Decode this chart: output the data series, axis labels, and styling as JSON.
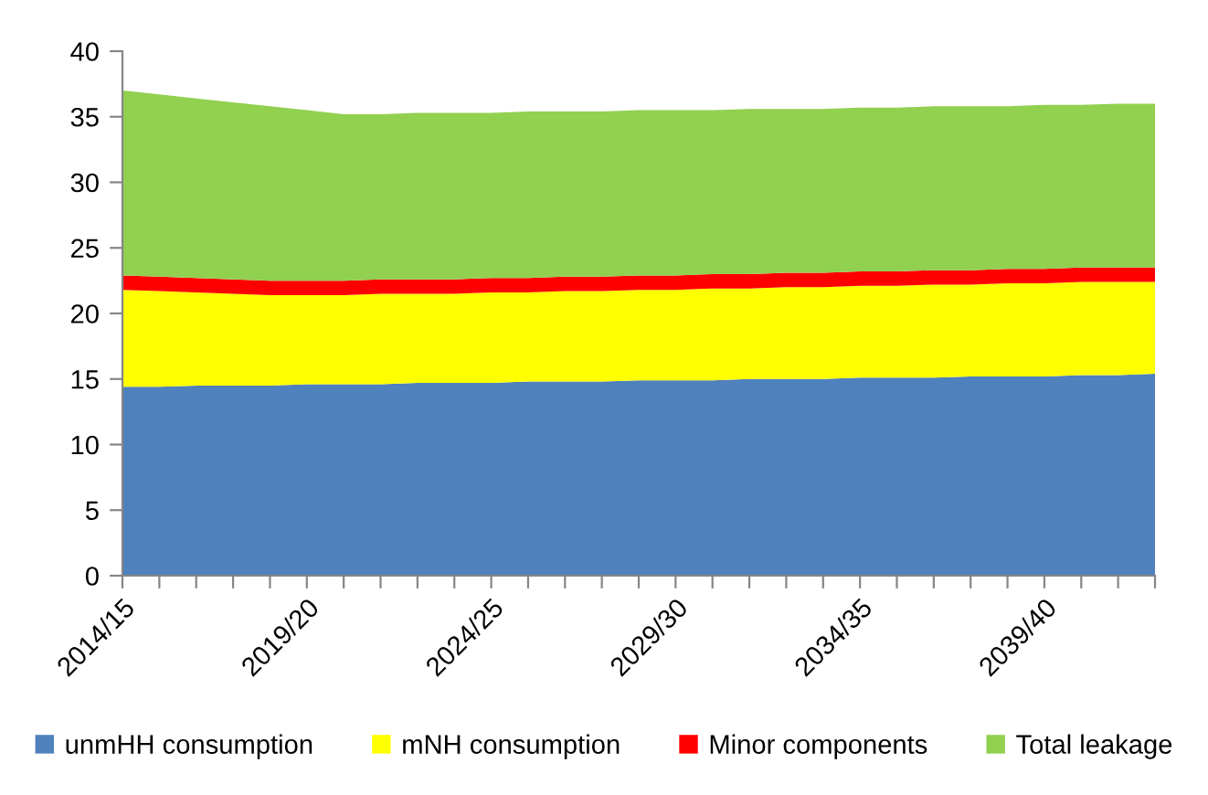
{
  "chart_data": {
    "type": "area",
    "stacked": true,
    "legend": "bottom",
    "categories": [
      "2014/15",
      null,
      null,
      null,
      null,
      "2019/20",
      null,
      null,
      null,
      null,
      "2024/25",
      null,
      null,
      null,
      null,
      "2029/30",
      null,
      null,
      null,
      null,
      "2034/35",
      null,
      null,
      null,
      null,
      "2039/40",
      null,
      null,
      null
    ],
    "ylim": [
      0,
      40
    ],
    "yticks": [
      0,
      5,
      10,
      15,
      20,
      25,
      30,
      35,
      40
    ],
    "series": [
      {
        "name": "unmHH consumption",
        "color": "#4f81bd",
        "values": [
          14.4,
          14.4,
          14.5,
          14.5,
          14.5,
          14.6,
          14.6,
          14.6,
          14.7,
          14.7,
          14.7,
          14.8,
          14.8,
          14.8,
          14.9,
          14.9,
          14.9,
          15.0,
          15.0,
          15.0,
          15.1,
          15.1,
          15.1,
          15.2,
          15.2,
          15.2,
          15.3,
          15.3,
          15.4
        ]
      },
      {
        "name": "mNH consumption",
        "color": "#ffff00",
        "values": [
          7.4,
          7.3,
          7.1,
          7.0,
          6.9,
          6.8,
          6.8,
          6.9,
          6.8,
          6.8,
          6.9,
          6.8,
          6.9,
          6.9,
          6.9,
          6.9,
          7.0,
          6.9,
          7.0,
          7.0,
          7.0,
          7.0,
          7.1,
          7.0,
          7.1,
          7.1,
          7.1,
          7.1,
          7.0
        ]
      },
      {
        "name": "Minor components",
        "color": "#ff0000",
        "values": [
          1.1,
          1.1,
          1.1,
          1.1,
          1.1,
          1.1,
          1.1,
          1.1,
          1.1,
          1.1,
          1.1,
          1.1,
          1.1,
          1.1,
          1.1,
          1.1,
          1.1,
          1.1,
          1.1,
          1.1,
          1.1,
          1.1,
          1.1,
          1.1,
          1.1,
          1.1,
          1.1,
          1.1,
          1.1
        ]
      },
      {
        "name": "Total leakage",
        "color": "#92d050",
        "values": [
          14.1,
          13.9,
          13.7,
          13.5,
          13.3,
          13.0,
          12.7,
          12.6,
          12.7,
          12.7,
          12.6,
          12.7,
          12.6,
          12.6,
          12.6,
          12.6,
          12.5,
          12.6,
          12.5,
          12.5,
          12.5,
          12.5,
          12.5,
          12.5,
          12.4,
          12.5,
          12.4,
          12.5,
          12.5
        ]
      }
    ]
  }
}
